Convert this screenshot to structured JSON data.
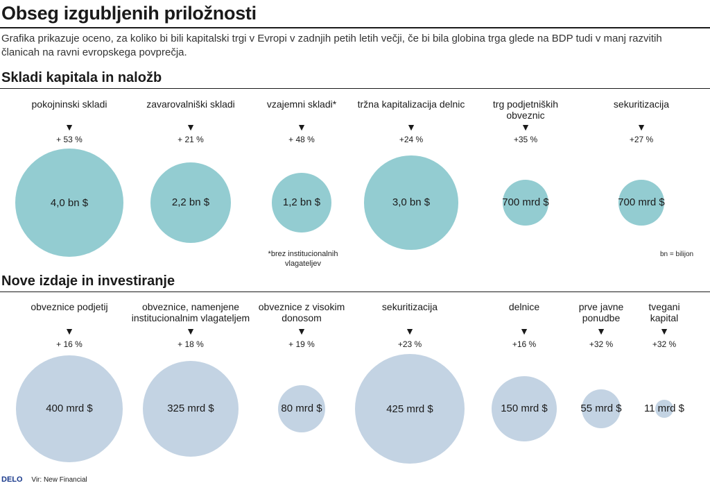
{
  "title": "Obseg izgubljenih priložnosti",
  "subtitle": "Grafika prikazuje oceno, za koliko bi bili kapitalski trgi v Evropi v zadnjih petih letih večji, če bi bila globina trga glede na BDP tudi v manj razvitih članicah na ravni evropskega povprečja.",
  "arrow_glyph": "▼",
  "abbreviation_note": "bn = bilijon",
  "footnote": "*brez institucionalnih vlagateljev",
  "footer": {
    "brand": "DELO",
    "source": "Vir: New Financial"
  },
  "colors": {
    "section1_bubble": "#93ccd1",
    "section2_bubble": "#c3d3e3",
    "text": "#1a1a1a"
  },
  "chart_data": [
    {
      "type": "bubble",
      "title": "Skladi kapitala in naložb",
      "categories": [
        "pokojninski skladi",
        "zavarovalniški skladi",
        "vzajemni skladi*",
        "tržna kapitalizacija delnic",
        "trg podjetniških obveznic",
        "sekuritizacija"
      ],
      "values_label": [
        "4,0 bn $",
        "2,2 bn $",
        "1,2 bn $",
        "3,0 bn $",
        "700 mrd $",
        "700 mrd $"
      ],
      "values_usd_billion": [
        4000,
        2200,
        1200,
        3000,
        700,
        700
      ],
      "percent_labels": [
        "+ 53 %",
        "+ 21 %",
        "+ 48 %",
        "+24 %",
        "+35 %",
        "+27 %"
      ]
    },
    {
      "type": "bubble",
      "title": "Nove izdaje in investiranje",
      "categories": [
        "obveznice podjetij",
        "obveznice, namenjene institucionalnim vlagateljem",
        "obveznice z visokim donosom",
        "sekuritizacija",
        "delnice",
        "prve javne ponudbe",
        "tvegani kapital"
      ],
      "values_label": [
        "400 mrd $",
        "325 mrd $",
        "80 mrd $",
        "425 mrd $",
        "150 mrd $",
        "55 mrd $",
        "11 mrd $"
      ],
      "values_usd_billion": [
        400,
        325,
        80,
        425,
        150,
        55,
        11
      ],
      "percent_labels": [
        "+ 16 %",
        "+ 18 %",
        "+ 19 %",
        "+23 %",
        "+16 %",
        "+32 %",
        "+32 %"
      ]
    }
  ]
}
